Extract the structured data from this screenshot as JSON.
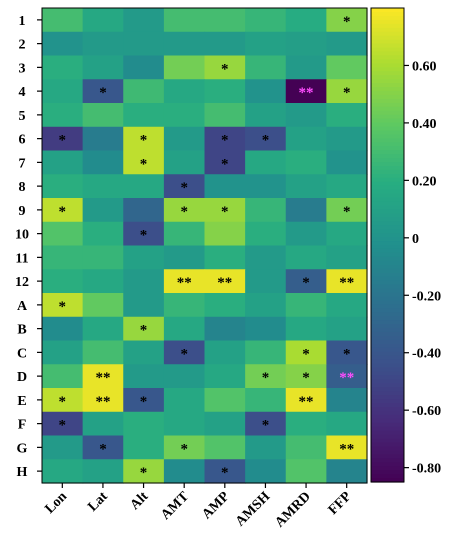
{
  "chart_data": {
    "type": "heatmap",
    "rows": [
      "1",
      "2",
      "3",
      "4",
      "5",
      "6",
      "7",
      "8",
      "9",
      "10",
      "11",
      "12",
      "A",
      "B",
      "C",
      "D",
      "E",
      "F",
      "G",
      "H"
    ],
    "columns": [
      "Lon",
      "Lat",
      "Alt",
      "AMT",
      "AMP",
      "AMSH",
      "AMRD",
      "FFP"
    ],
    "values": [
      [
        0.3,
        0.15,
        0.05,
        0.3,
        0.3,
        0.25,
        0.18,
        0.5
      ],
      [
        0.0,
        0.05,
        0.05,
        0.05,
        0.05,
        0.1,
        0.08,
        0.05
      ],
      [
        0.2,
        0.1,
        -0.05,
        0.45,
        0.55,
        0.25,
        0.05,
        0.4
      ],
      [
        0.15,
        -0.4,
        0.28,
        0.15,
        0.2,
        0.0,
        -0.85,
        0.55
      ],
      [
        0.2,
        0.3,
        0.2,
        0.2,
        0.3,
        0.1,
        0.05,
        0.2
      ],
      [
        -0.55,
        -0.15,
        0.65,
        0.05,
        -0.5,
        -0.45,
        0.1,
        0.05
      ],
      [
        0.1,
        -0.05,
        0.65,
        0.1,
        -0.5,
        0.15,
        0.2,
        0.0
      ],
      [
        0.2,
        0.15,
        0.15,
        -0.45,
        0.0,
        0.0,
        0.1,
        0.15
      ],
      [
        0.65,
        0.05,
        -0.3,
        0.55,
        0.55,
        0.25,
        -0.15,
        0.45
      ],
      [
        0.35,
        0.2,
        -0.45,
        0.25,
        0.5,
        0.2,
        0.05,
        0.15
      ],
      [
        0.25,
        0.25,
        0.1,
        0.05,
        0.2,
        0.05,
        0.15,
        0.1
      ],
      [
        0.2,
        0.15,
        0.05,
        0.75,
        0.75,
        0.05,
        -0.35,
        0.75
      ],
      [
        0.65,
        0.4,
        0.05,
        0.25,
        0.2,
        0.1,
        0.25,
        0.15
      ],
      [
        -0.05,
        0.15,
        0.55,
        0.15,
        -0.1,
        -0.05,
        0.15,
        0.1
      ],
      [
        0.1,
        0.3,
        0.1,
        -0.45,
        0.1,
        0.25,
        0.6,
        -0.4
      ],
      [
        0.3,
        0.75,
        0.05,
        0.05,
        0.15,
        0.45,
        0.5,
        -0.35
      ],
      [
        0.65,
        0.75,
        -0.4,
        0.15,
        0.35,
        0.25,
        0.75,
        -0.1
      ],
      [
        -0.5,
        0.1,
        0.2,
        0.15,
        0.1,
        -0.45,
        0.2,
        0.15
      ],
      [
        0.05,
        -0.4,
        0.2,
        0.45,
        0.35,
        0.05,
        0.3,
        0.75
      ],
      [
        0.15,
        0.1,
        0.55,
        -0.05,
        -0.4,
        -0.05,
        0.35,
        -0.1
      ]
    ],
    "significance": [
      [
        "",
        "",
        "",
        "",
        "",
        "",
        "",
        "*"
      ],
      [
        "",
        "",
        "",
        "",
        "",
        "",
        "",
        ""
      ],
      [
        "",
        "",
        "",
        "",
        "*",
        "",
        "",
        ""
      ],
      [
        "",
        "*",
        "",
        "",
        "",
        "",
        "**",
        "*"
      ],
      [
        "",
        "",
        "",
        "",
        "",
        "",
        "",
        ""
      ],
      [
        "*",
        "",
        "*",
        "",
        "*",
        "*",
        "",
        ""
      ],
      [
        "",
        "",
        "*",
        "",
        "*",
        "",
        "",
        ""
      ],
      [
        "",
        "",
        "",
        "*",
        "",
        "",
        "",
        ""
      ],
      [
        "*",
        "",
        "",
        "*",
        "*",
        "",
        "",
        "*"
      ],
      [
        "",
        "",
        "*",
        "",
        "",
        "",
        "",
        ""
      ],
      [
        "",
        "",
        "",
        "",
        "",
        "",
        "",
        ""
      ],
      [
        "",
        "",
        "",
        "**",
        "**",
        "",
        "*",
        "**"
      ],
      [
        "*",
        "",
        "",
        "",
        "",
        "",
        "",
        ""
      ],
      [
        "",
        "",
        "*",
        "",
        "",
        "",
        "",
        ""
      ],
      [
        "",
        "",
        "",
        "*",
        "",
        "",
        "*",
        "*"
      ],
      [
        "",
        "**",
        "",
        "",
        "",
        "*",
        "*",
        "**"
      ],
      [
        "*",
        "**",
        "*",
        "",
        "",
        "",
        "**",
        ""
      ],
      [
        "*",
        "",
        "",
        "",
        "",
        "*",
        "",
        ""
      ],
      [
        "",
        "*",
        "",
        "*",
        "",
        "",
        "",
        "**"
      ],
      [
        "",
        "",
        "*",
        "",
        "*",
        "",
        "",
        ""
      ]
    ],
    "highlight_star_cells": [
      [
        3,
        6
      ],
      [
        15,
        7
      ]
    ],
    "highlight_star_color": "#ff4dff",
    "colorscale": "viridis",
    "vmin": -0.85,
    "vmax": 0.8,
    "colorbar_ticks": [
      0.6,
      0.4,
      0.2,
      0,
      -0.2,
      -0.4,
      -0.6,
      -0.8
    ],
    "colorbar_tick_labels": [
      "0.60",
      "0.40",
      "0.20",
      "0",
      "-0.20",
      "-0.40",
      "-0.60",
      "-0.80"
    ],
    "title": "",
    "xlabel": "",
    "ylabel": ""
  }
}
